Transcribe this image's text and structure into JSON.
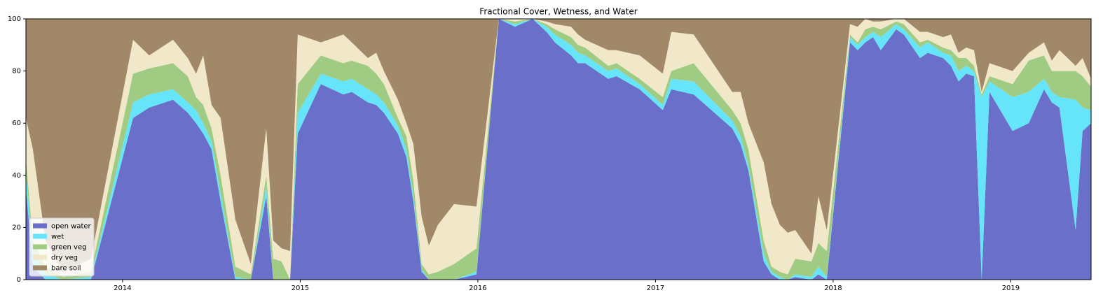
{
  "chart_data": {
    "type": "stacked_area",
    "title": "Fractional Cover, Wetness, and Water",
    "x": [
      2013.456,
      2013.495,
      2013.566,
      2013.665,
      2013.822,
      2014.059,
      2014.15,
      2014.284,
      2014.367,
      2014.414,
      2014.454,
      2014.501,
      2014.552,
      2014.635,
      2014.722,
      2014.809,
      2014.848,
      2014.895,
      2014.943,
      2014.986,
      2015.116,
      2015.243,
      2015.29,
      2015.381,
      2015.428,
      2015.471,
      2015.55,
      2015.598,
      2015.637,
      2015.684,
      2015.724,
      2015.775,
      2015.866,
      2015.992,
      2016.118,
      2016.209,
      2016.308,
      2016.387,
      2016.434,
      2016.525,
      2016.564,
      2016.604,
      2016.734,
      2016.781,
      2016.911,
      2017.041,
      2017.089,
      2017.215,
      2017.432,
      2017.479,
      2017.523,
      2017.609,
      2017.653,
      2017.7,
      2017.744,
      2017.787,
      2017.878,
      2017.917,
      2017.964,
      2018.095,
      2018.138,
      2018.181,
      2018.225,
      2018.268,
      2018.355,
      2018.398,
      2018.489,
      2018.533,
      2018.619,
      2018.663,
      2018.706,
      2018.749,
      2018.793,
      2018.836,
      2018.88,
      2019.01,
      2019.101,
      2019.187,
      2019.231,
      2019.274,
      2019.365,
      2019.404,
      2019.452
    ],
    "series": [
      {
        "name": "open water",
        "color": "#6a70c9",
        "values": [
          35,
          5,
          0,
          0,
          0,
          62,
          66,
          69,
          64,
          60,
          56,
          50,
          30,
          0,
          0,
          32,
          0,
          0,
          0,
          56,
          75,
          71,
          72,
          68,
          67,
          64,
          56,
          47,
          30,
          3,
          0,
          0,
          0,
          2,
          100,
          97,
          100,
          95,
          91,
          86,
          83,
          83,
          77,
          78,
          73,
          65,
          73,
          71,
          58,
          52,
          42,
          7,
          2,
          0,
          0,
          1,
          0,
          2,
          0,
          91,
          88,
          91,
          93,
          88,
          96,
          94,
          85,
          87,
          85,
          82,
          76,
          79,
          78,
          0,
          72,
          57,
          60,
          73,
          68,
          66,
          19,
          57,
          60
        ]
      },
      {
        "name": "wet",
        "color": "#66e4fa",
        "values": [
          7,
          5,
          2,
          0,
          1,
          6,
          5,
          4,
          4,
          5,
          4,
          3,
          3,
          1,
          0,
          4,
          0,
          0,
          0,
          8,
          4,
          5,
          5,
          5,
          4,
          4,
          3,
          3,
          2,
          1,
          0,
          0,
          0,
          1,
          0,
          1,
          0,
          2,
          3,
          4,
          4,
          3,
          3,
          3,
          2,
          2,
          4,
          5,
          3,
          3,
          2,
          3,
          1,
          1,
          0,
          1,
          1,
          3,
          1,
          2,
          2,
          2,
          2,
          5,
          2,
          2,
          4,
          4,
          2,
          4,
          4,
          3,
          2,
          70,
          4,
          13,
          12,
          4,
          4,
          4,
          50,
          9,
          5
        ]
      },
      {
        "name": "green veg",
        "color": "#9fcc82",
        "values": [
          5,
          5,
          3,
          1,
          2,
          11,
          10,
          10,
          10,
          5,
          7,
          5,
          7,
          4,
          2,
          4,
          8,
          7,
          0,
          11,
          7,
          7,
          7,
          9,
          8,
          7,
          3,
          5,
          6,
          2,
          2,
          3,
          6,
          9,
          0,
          1,
          0,
          1,
          2,
          3,
          3,
          3,
          2,
          2,
          2,
          3,
          3,
          7,
          4,
          5,
          6,
          5,
          2,
          2,
          2,
          6,
          6,
          9,
          10,
          1,
          1,
          3,
          2,
          3,
          1,
          2,
          2,
          1,
          2,
          2,
          5,
          3,
          2,
          1,
          2,
          5,
          12,
          9,
          8,
          10,
          11,
          12,
          9
        ]
      },
      {
        "name": "dry veg",
        "color": "#f1e7c9",
        "values": [
          15,
          35,
          10,
          2,
          5,
          13,
          5,
          9,
          7,
          9,
          19,
          9,
          22,
          18,
          4,
          18,
          7,
          5,
          11,
          19,
          5,
          11,
          7,
          3,
          8,
          5,
          7,
          5,
          14,
          18,
          11,
          18,
          23,
          16,
          0,
          1,
          0,
          1,
          2,
          4,
          4,
          3,
          6,
          5,
          9,
          9,
          15,
          11,
          7,
          12,
          10,
          30,
          24,
          18,
          16,
          11,
          3,
          18,
          8,
          4,
          6,
          4,
          2,
          3,
          1,
          2,
          4,
          3,
          4,
          6,
          2,
          4,
          6,
          1,
          5,
          5,
          3,
          5,
          4,
          8,
          2,
          7,
          3
        ]
      },
      {
        "name": "bare soil",
        "color": "#a08868",
        "values": [
          38,
          50,
          85,
          97,
          92,
          8,
          14,
          8,
          15,
          21,
          14,
          33,
          38,
          77,
          94,
          42,
          85,
          88,
          89,
          6,
          9,
          6,
          9,
          15,
          13,
          20,
          31,
          40,
          48,
          76,
          87,
          79,
          71,
          72,
          0,
          0,
          0,
          1,
          2,
          3,
          6,
          8,
          12,
          12,
          14,
          21,
          5,
          6,
          28,
          28,
          40,
          55,
          71,
          79,
          82,
          81,
          90,
          68,
          81,
          2,
          3,
          0,
          1,
          1,
          0,
          0,
          5,
          5,
          7,
          6,
          13,
          11,
          12,
          28,
          17,
          20,
          13,
          9,
          16,
          12,
          18,
          15,
          23
        ]
      }
    ],
    "xlim": [
      2013.456,
      2019.452
    ],
    "xticks": [
      2014,
      2015,
      2016,
      2017,
      2018,
      2019
    ],
    "ylim": [
      0,
      100
    ],
    "yticks": [
      0,
      20,
      40,
      60,
      80,
      100
    ],
    "legend": "lower left"
  }
}
